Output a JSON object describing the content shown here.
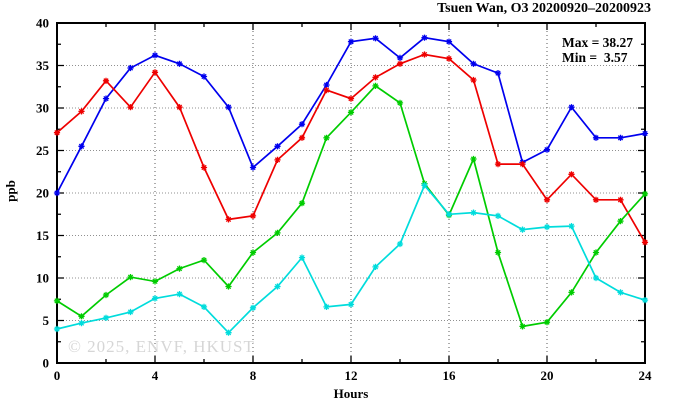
{
  "header": {
    "title": "Tsuen Wan, O3 20200920–20200923"
  },
  "legend": {
    "max_label": "Max = 38.27",
    "min_label": "Min =  3.57"
  },
  "watermark": {
    "text": "© 2025, ENVF, HKUST"
  },
  "chart_data": {
    "type": "line",
    "title": "Tsuen Wan, O3 20200920–20200923",
    "xlabel": "Hours",
    "ylabel": "ppb",
    "xlim": [
      0,
      24
    ],
    "ylim": [
      0,
      40
    ],
    "x_major_ticks": [
      0,
      4,
      8,
      12,
      16,
      20,
      24
    ],
    "x_minor_step": 2,
    "y_major_ticks": [
      0,
      5,
      10,
      15,
      20,
      25,
      30,
      35,
      40
    ],
    "y_minor_step": 2.5,
    "grid": {
      "x_lines": [
        4,
        8,
        12,
        16,
        20
      ],
      "y_lines": [
        5,
        10,
        15,
        20,
        25,
        30,
        35
      ]
    },
    "annotations": {
      "max": 38.27,
      "min": 3.57
    },
    "x": [
      0,
      1,
      2,
      3,
      4,
      5,
      6,
      7,
      8,
      9,
      10,
      11,
      12,
      13,
      14,
      15,
      16,
      17,
      18,
      19,
      20,
      21,
      22,
      23,
      24
    ],
    "series": [
      {
        "name": "blue-line",
        "color": "#0000ee",
        "values": [
          20.0,
          25.5,
          31.1,
          34.7,
          36.2,
          35.2,
          33.7,
          30.1,
          23.0,
          25.5,
          28.1,
          32.7,
          37.8,
          38.2,
          35.9,
          38.27,
          37.8,
          35.2,
          34.1,
          23.6,
          25.1,
          30.1,
          26.5,
          26.5,
          27.0
        ]
      },
      {
        "name": "red-line",
        "color": "#ee0000",
        "values": [
          27.1,
          29.6,
          33.2,
          30.1,
          34.2,
          30.1,
          23.0,
          16.9,
          17.3,
          23.9,
          26.5,
          32.1,
          31.1,
          33.6,
          35.2,
          36.3,
          35.8,
          33.3,
          23.4,
          23.4,
          19.2,
          22.2,
          19.2,
          19.2,
          14.2
        ]
      },
      {
        "name": "green-line",
        "color": "#00cc00",
        "values": [
          7.3,
          5.5,
          8.0,
          10.1,
          9.6,
          11.1,
          12.1,
          9.0,
          13.0,
          15.3,
          18.8,
          26.5,
          29.5,
          32.6,
          30.6,
          21.1,
          17.4,
          24.0,
          13.0,
          4.3,
          4.8,
          8.3,
          13.0,
          16.7,
          19.9
        ]
      },
      {
        "name": "cyan-line",
        "color": "#00dcdc",
        "values": [
          4.0,
          4.7,
          5.3,
          6.0,
          7.6,
          8.1,
          6.6,
          3.57,
          6.5,
          9.0,
          12.4,
          6.6,
          6.9,
          11.3,
          14.0,
          20.9,
          17.5,
          17.7,
          17.3,
          15.7,
          16.0,
          16.1,
          10.0,
          8.3,
          7.4
        ]
      }
    ]
  }
}
